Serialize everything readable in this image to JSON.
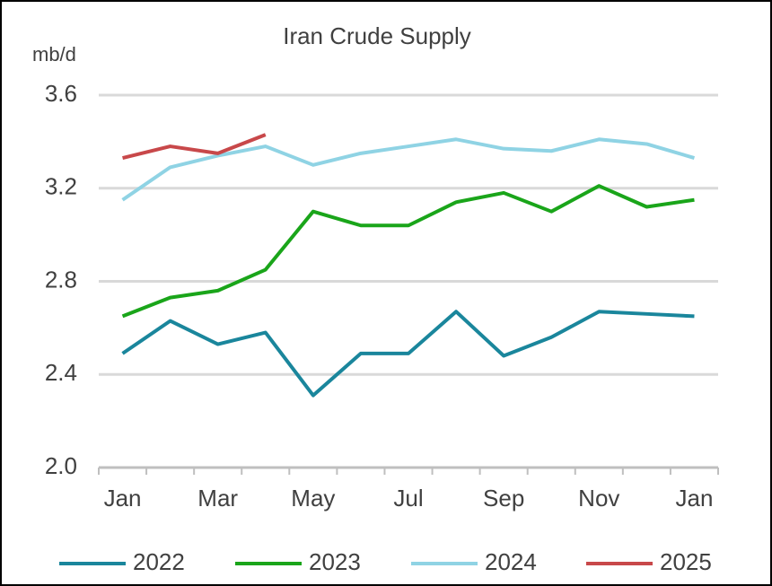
{
  "chart_data": {
    "type": "line",
    "title": "Iran Crude Supply",
    "y_label": "mb/d",
    "categories": [
      "Jan",
      null,
      "Mar",
      null,
      "May",
      null,
      "Jul",
      null,
      "Sep",
      null,
      "Nov",
      null,
      "Jan"
    ],
    "series": [
      {
        "name": "2022",
        "color": "#1a869c",
        "values": [
          2.49,
          2.63,
          2.53,
          2.58,
          2.31,
          2.49,
          2.49,
          2.67,
          2.48,
          2.56,
          2.67,
          2.66,
          2.65
        ]
      },
      {
        "name": "2023",
        "color": "#1aa51a",
        "values": [
          2.65,
          2.73,
          2.76,
          2.85,
          3.1,
          3.04,
          3.04,
          3.14,
          3.18,
          3.1,
          3.21,
          3.12,
          3.15
        ]
      },
      {
        "name": "2024",
        "color": "#8fd3e4",
        "values": [
          3.15,
          3.29,
          3.34,
          3.38,
          3.3,
          3.35,
          3.38,
          3.41,
          3.37,
          3.36,
          3.41,
          3.39,
          3.33
        ]
      },
      {
        "name": "2025",
        "color": "#c8484a",
        "values": [
          3.33,
          3.38,
          3.35,
          3.43,
          null,
          null,
          null,
          null,
          null,
          null,
          null,
          null,
          null
        ]
      }
    ],
    "ylim": [
      2.0,
      3.6
    ],
    "yticks": [
      {
        "value": 2.0,
        "label": "2.0"
      },
      2.4,
      2.8,
      3.2,
      3.6
    ],
    "grid": true,
    "legend": "bottom"
  }
}
